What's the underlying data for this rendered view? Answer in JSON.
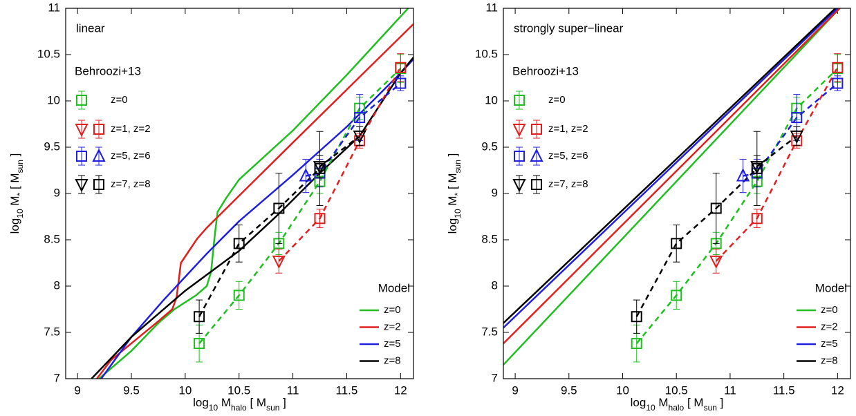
{
  "chart_data": [
    {
      "type": "line",
      "title": "linear",
      "xlabel": [
        "log",
        "10",
        " M",
        "halo",
        " [ M",
        "sun",
        " ]"
      ],
      "ylabel": [
        "log",
        "10",
        " M",
        "*",
        " [ M",
        "sun",
        " ]"
      ],
      "xlim": [
        8.89,
        12.12
      ],
      "ylim": [
        7,
        11
      ],
      "xticks": [
        9,
        9.5,
        10,
        10.5,
        11,
        11.5,
        12
      ],
      "yticks": [
        7,
        7.5,
        8,
        8.5,
        9,
        9.5,
        10,
        10.5,
        11
      ],
      "model_title": "Model",
      "series": [
        {
          "name": "z=0",
          "color": "#1fbf1f",
          "x": [
            9.2,
            9.5,
            9.75,
            9.9,
            10.1,
            10.2,
            10.24,
            10.27,
            10.3,
            10.38,
            10.5,
            11,
            11.5,
            12.07
          ],
          "values": [
            7,
            7.3,
            7.6,
            7.75,
            7.9,
            8.0,
            8.15,
            8.5,
            8.8,
            8.95,
            9.15,
            9.68,
            10.28,
            11
          ]
        },
        {
          "name": "z=2",
          "color": "#e01f1f",
          "x": [
            9.18,
            9.31,
            9.75,
            9.88,
            9.92,
            9.96,
            10.11,
            10.2,
            11,
            12.12
          ],
          "values": [
            7,
            7.2,
            7.62,
            7.75,
            7.88,
            8.25,
            8.51,
            8.63,
            9.55,
            10.83
          ]
        },
        {
          "name": "z=5",
          "color": "#1f1fdf",
          "x": [
            9.22,
            9.5,
            9.8,
            10.2,
            10.5,
            11,
            11.5,
            12,
            12.12
          ],
          "values": [
            7,
            7.45,
            7.85,
            8.35,
            8.7,
            9.2,
            9.72,
            10.3,
            10.45
          ]
        },
        {
          "name": "z=8",
          "color": "#000000",
          "x": [
            9.13,
            9.5,
            10,
            10.5,
            10.87,
            11.25,
            11.62,
            12,
            12.12
          ],
          "values": [
            7,
            7.45,
            7.95,
            8.38,
            8.78,
            9.22,
            9.62,
            10.3,
            10.47
          ]
        }
      ],
      "data_title": "Behroozi+13",
      "data_legend": [
        "z=0",
        "z=1, z=2",
        "z=5, z=6",
        "z=7, z=8"
      ],
      "data_series": [
        {
          "marker": "square",
          "color": "#1fbf1f",
          "x": [
            10.13,
            10.5,
            10.87,
            11.25,
            11.62,
            12.0
          ],
          "values": [
            7.38,
            7.9,
            8.46,
            9.13,
            9.92,
            10.35
          ],
          "errors": [
            0.2,
            0.15,
            0.12,
            0.13,
            0.12,
            0.15
          ]
        },
        {
          "marker": "triangle-down",
          "color": "#e01f1f",
          "x": [
            10.87
          ],
          "values": [
            8.27
          ],
          "errors": [
            0.13
          ]
        },
        {
          "marker": "square",
          "color": "#e01f1f",
          "x": [
            11.25,
            11.62,
            12.0
          ],
          "values": [
            8.73,
            9.57,
            10.36
          ],
          "errors": [
            0.1,
            0.08,
            0.15
          ]
        },
        {
          "marker": "triangle-up",
          "color": "#1f1fdf",
          "x": [
            11.12
          ],
          "values": [
            9.19
          ],
          "errors": [
            0.18
          ]
        },
        {
          "marker": "square",
          "color": "#1f1fdf",
          "x": [
            11.25,
            11.62,
            12.0
          ],
          "values": [
            9.22,
            9.82,
            10.19
          ],
          "errors": [
            0.15,
            0.25,
            0.08
          ]
        },
        {
          "marker": "square",
          "color": "#000000",
          "x": [
            10.13,
            10.5,
            10.87,
            11.25
          ],
          "values": [
            7.67,
            8.46,
            8.84,
            9.27
          ],
          "errors": [
            0.18,
            0.2,
            0.38,
            0.4
          ]
        },
        {
          "marker": "triangle-down",
          "color": "#000000",
          "x": [
            11.25,
            11.62
          ],
          "values": [
            9.29,
            9.62
          ],
          "errors": [
            0.12,
            0.1
          ]
        }
      ]
    },
    {
      "type": "line",
      "title": "strongly super−linear",
      "xlabel": [
        "log",
        "10",
        " M",
        "halo",
        " [ M",
        "sun",
        " ]"
      ],
      "ylabel": [
        "log",
        "10",
        " M",
        "*",
        " [ M",
        "sun",
        " ]"
      ],
      "xlim": [
        8.89,
        12.12
      ],
      "ylim": [
        7,
        11
      ],
      "xticks": [
        9,
        9.5,
        10,
        10.5,
        11,
        11.5,
        12
      ],
      "yticks": [
        7,
        7.5,
        8,
        8.5,
        9,
        9.5,
        10,
        10.5,
        11
      ],
      "model_title": "Model",
      "series": [
        {
          "name": "z=0",
          "color": "#1fbf1f",
          "x": [
            8.89,
            12.02
          ],
          "values": [
            7.15,
            11
          ]
        },
        {
          "name": "z=2",
          "color": "#e01f1f",
          "x": [
            8.89,
            12.02
          ],
          "values": [
            7.38,
            11
          ]
        },
        {
          "name": "z=5",
          "color": "#1f1fdf",
          "x": [
            8.89,
            12.0
          ],
          "values": [
            7.55,
            11
          ]
        },
        {
          "name": "z=8",
          "color": "#000000",
          "x": [
            8.89,
            11.98
          ],
          "values": [
            7.6,
            11
          ]
        }
      ],
      "data_title": "Behroozi+13",
      "data_legend": [
        "z=0",
        "z=1, z=2",
        "z=5, z=6",
        "z=7, z=8"
      ],
      "data_series": [
        {
          "marker": "square",
          "color": "#1fbf1f",
          "x": [
            10.13,
            10.5,
            10.87,
            11.25,
            11.62,
            12.0
          ],
          "values": [
            7.38,
            7.9,
            8.46,
            9.13,
            9.92,
            10.35
          ],
          "errors": [
            0.2,
            0.15,
            0.12,
            0.13,
            0.12,
            0.15
          ]
        },
        {
          "marker": "triangle-down",
          "color": "#e01f1f",
          "x": [
            10.87
          ],
          "values": [
            8.27
          ],
          "errors": [
            0.13
          ]
        },
        {
          "marker": "square",
          "color": "#e01f1f",
          "x": [
            11.25,
            11.62,
            12.0
          ],
          "values": [
            8.73,
            9.57,
            10.36
          ],
          "errors": [
            0.1,
            0.08,
            0.15
          ]
        },
        {
          "marker": "triangle-up",
          "color": "#1f1fdf",
          "x": [
            11.12
          ],
          "values": [
            9.19
          ],
          "errors": [
            0.18
          ]
        },
        {
          "marker": "square",
          "color": "#1f1fdf",
          "x": [
            11.25,
            11.62,
            12.0
          ],
          "values": [
            9.22,
            9.82,
            10.19
          ],
          "errors": [
            0.15,
            0.25,
            0.08
          ]
        },
        {
          "marker": "square",
          "color": "#000000",
          "x": [
            10.13,
            10.5,
            10.87,
            11.25
          ],
          "values": [
            7.67,
            8.46,
            8.84,
            9.27
          ],
          "errors": [
            0.18,
            0.2,
            0.38,
            0.4
          ]
        },
        {
          "marker": "triangle-down",
          "color": "#000000",
          "x": [
            11.25,
            11.62
          ],
          "values": [
            9.29,
            9.62
          ],
          "errors": [
            0.12,
            0.1
          ]
        }
      ]
    }
  ]
}
